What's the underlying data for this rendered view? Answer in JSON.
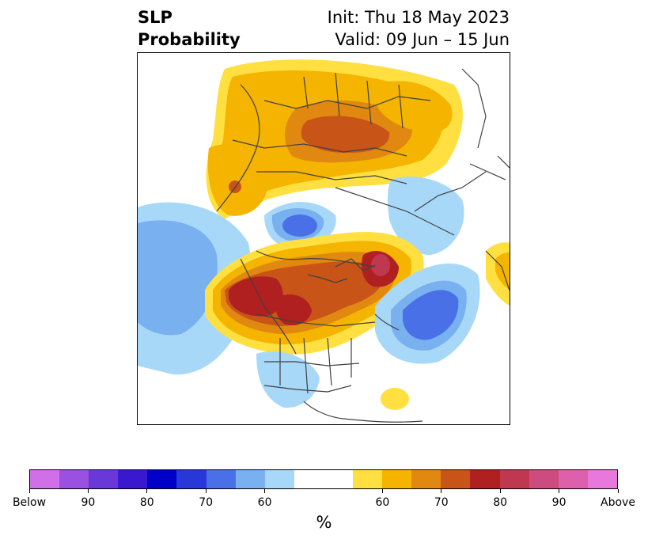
{
  "header": {
    "title_line1": "SLP",
    "title_line2": "Probability",
    "init": "Init: Thu 18 May 2023",
    "valid": "Valid: 09 Jun – 15 Jun"
  },
  "colorbar": {
    "unit_label": "%",
    "colors": [
      "#d070e8",
      "#9a50e0",
      "#6a38d8",
      "#3a18d0",
      "#0000c8",
      "#2838d8",
      "#4a70e8",
      "#78b0f0",
      "#a8d8f8",
      "#ffffff",
      "#ffffff",
      "#ffe040",
      "#f4b400",
      "#e08810",
      "#c85418",
      "#b02020",
      "#c03850",
      "#cc4c80",
      "#dc60ac",
      "#e878dc"
    ],
    "ticks": [
      "Below",
      "90",
      "80",
      "70",
      "60",
      "60",
      "70",
      "80",
      "90",
      "Above"
    ],
    "tick_positions": [
      0,
      2,
      4,
      6,
      8,
      12,
      14,
      16,
      18,
      20
    ]
  },
  "map": {
    "projection": "north-polar-stereographic",
    "palette": {
      "yellow": "#ffe040",
      "gold": "#f4b400",
      "orange": "#e08810",
      "rust": "#c85418",
      "red": "#b02020",
      "crimson": "#c03850",
      "pale_blue": "#a8d8f8",
      "light_blue": "#78b0f0",
      "mid_blue": "#4a70e8"
    }
  }
}
